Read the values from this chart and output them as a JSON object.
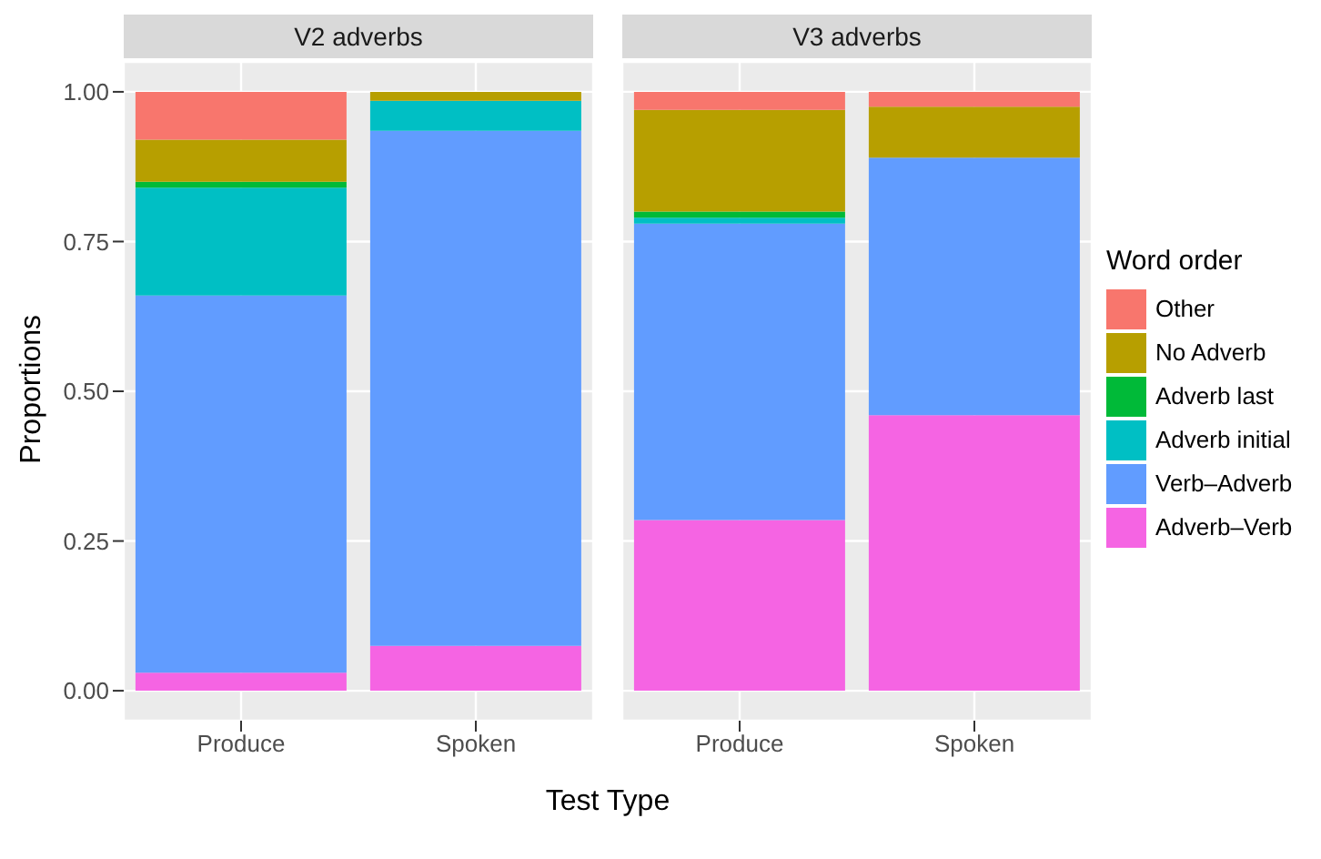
{
  "chart_data": [
    {
      "type": "bar",
      "title": "V2 adverbs",
      "xlabel": "Test Type",
      "ylabel": "Proportions",
      "categories": [
        "Produce",
        "Spoken"
      ],
      "stacked": true,
      "ylim": [
        -0.05,
        1.05
      ],
      "yticks": [
        {
          "value": 0,
          "label": "0.00"
        },
        {
          "value": 0.25,
          "label": "0.25"
        },
        {
          "value": 0.5,
          "label": "0.50"
        },
        {
          "value": 0.75,
          "label": "0.75"
        },
        {
          "value": 1,
          "label": "1.00"
        }
      ],
      "grid": true,
      "legend": "right",
      "legend_title": "Word order",
      "series": [
        {
          "name": "Adverb–Verb",
          "color": "#f564e3",
          "values": [
            0.03,
            0.075
          ]
        },
        {
          "name": "Verb–Adverb",
          "color": "#619cff",
          "values": [
            0.63,
            0.86
          ]
        },
        {
          "name": "Adverb initial",
          "color": "#00bfc4",
          "values": [
            0.18,
            0.05
          ]
        },
        {
          "name": "Adverb last",
          "color": "#00ba38",
          "values": [
            0.01,
            0
          ]
        },
        {
          "name": "No Adverb",
          "color": "#b79f00",
          "values": [
            0.07,
            0.015
          ]
        },
        {
          "name": "Other",
          "color": "#f8766d",
          "values": [
            0.08,
            0
          ]
        }
      ]
    },
    {
      "type": "bar",
      "title": "V3 adverbs",
      "categories": [
        "Produce",
        "Spoken"
      ],
      "stacked": true,
      "ylim": [
        -0.05,
        1.05
      ],
      "yticks": [
        {
          "value": 0,
          "label": null
        },
        {
          "value": 0.25,
          "label": null
        },
        {
          "value": 0.5,
          "label": null
        },
        {
          "value": 0.75,
          "label": null
        },
        {
          "value": 1,
          "label": null
        }
      ],
      "grid": true,
      "tick_labels": "x",
      "series": [
        {
          "color": "#f564e3",
          "values": [
            0.285,
            0.46
          ]
        },
        {
          "color": "#619cff",
          "values": [
            0.495,
            0.43
          ]
        },
        {
          "color": "#00bfc4",
          "values": [
            0.01,
            0
          ]
        },
        {
          "color": "#00ba38",
          "values": [
            0.01,
            0
          ]
        },
        {
          "color": "#b79f00",
          "values": [
            0.17,
            0.085
          ]
        },
        {
          "color": "#f8766d",
          "values": [
            0.03,
            0.025
          ]
        }
      ]
    }
  ]
}
